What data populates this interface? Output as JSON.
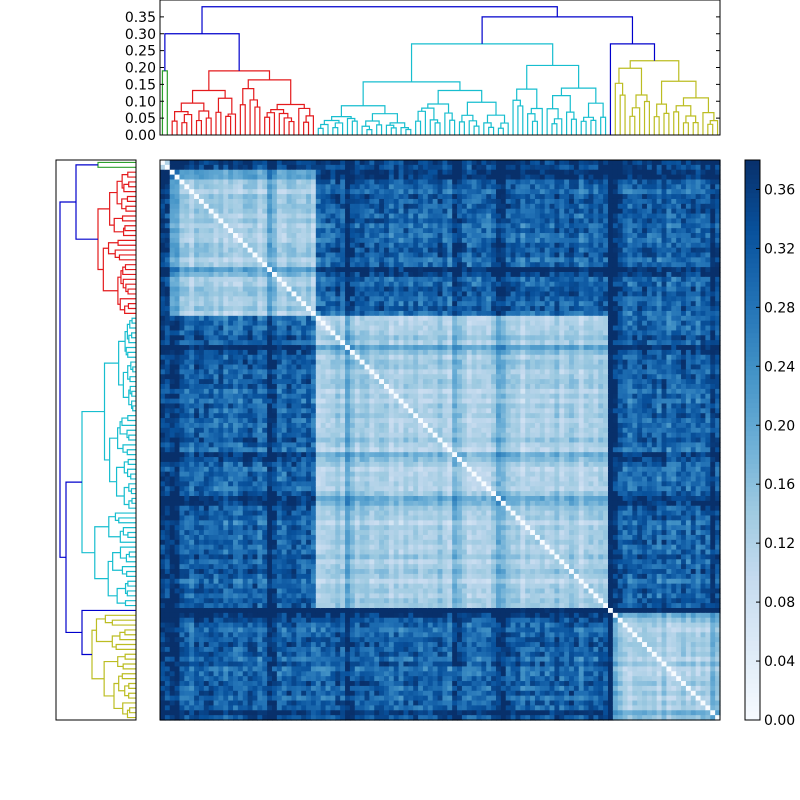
{
  "chart_data": {
    "type": "heatmap",
    "title": "",
    "xlabel": "",
    "ylabel": "",
    "dendrogram_top": {
      "ylim": [
        0,
        0.4
      ],
      "yticks": [
        "0.00",
        "0.05",
        "0.10",
        "0.15",
        "0.20",
        "0.25",
        "0.30",
        "0.35"
      ],
      "clusters": [
        {
          "name": "green",
          "color": "#2ca02c",
          "leaves": 2,
          "height": 0.19
        },
        {
          "name": "red",
          "color": "#e41a1c",
          "leaves": 30,
          "height": 0.19
        },
        {
          "name": "cyan",
          "color": "#17becf",
          "leaves": 60,
          "height": 0.27
        },
        {
          "name": "magenta",
          "color": "#d62bd6",
          "leaves": 1,
          "height": 0.17
        },
        {
          "name": "yellow",
          "color": "#bcbd22",
          "leaves": 22,
          "height": 0.22
        }
      ],
      "link_color": "#0000cc",
      "top_links": [
        0.3,
        0.38,
        0.35,
        0.27
      ]
    },
    "colorbar": {
      "min": 0.0,
      "max": 0.38,
      "ticks": [
        "0.00",
        "0.04",
        "0.08",
        "0.12",
        "0.16",
        "0.20",
        "0.24",
        "0.28",
        "0.32",
        "0.36"
      ],
      "colormap": "Blues"
    },
    "matrix": {
      "size": 115,
      "blocks": [
        {
          "name": "green",
          "start": 0,
          "end": 2
        },
        {
          "name": "red",
          "start": 2,
          "end": 32
        },
        {
          "name": "cyan",
          "start": 32,
          "end": 92
        },
        {
          "name": "magenta",
          "start": 92,
          "end": 93
        },
        {
          "name": "yellow",
          "start": 93,
          "end": 115
        }
      ],
      "diagonal": 0.0,
      "within_block_range": [
        0.03,
        0.12
      ],
      "between_block_range": [
        0.12,
        0.36
      ]
    }
  }
}
